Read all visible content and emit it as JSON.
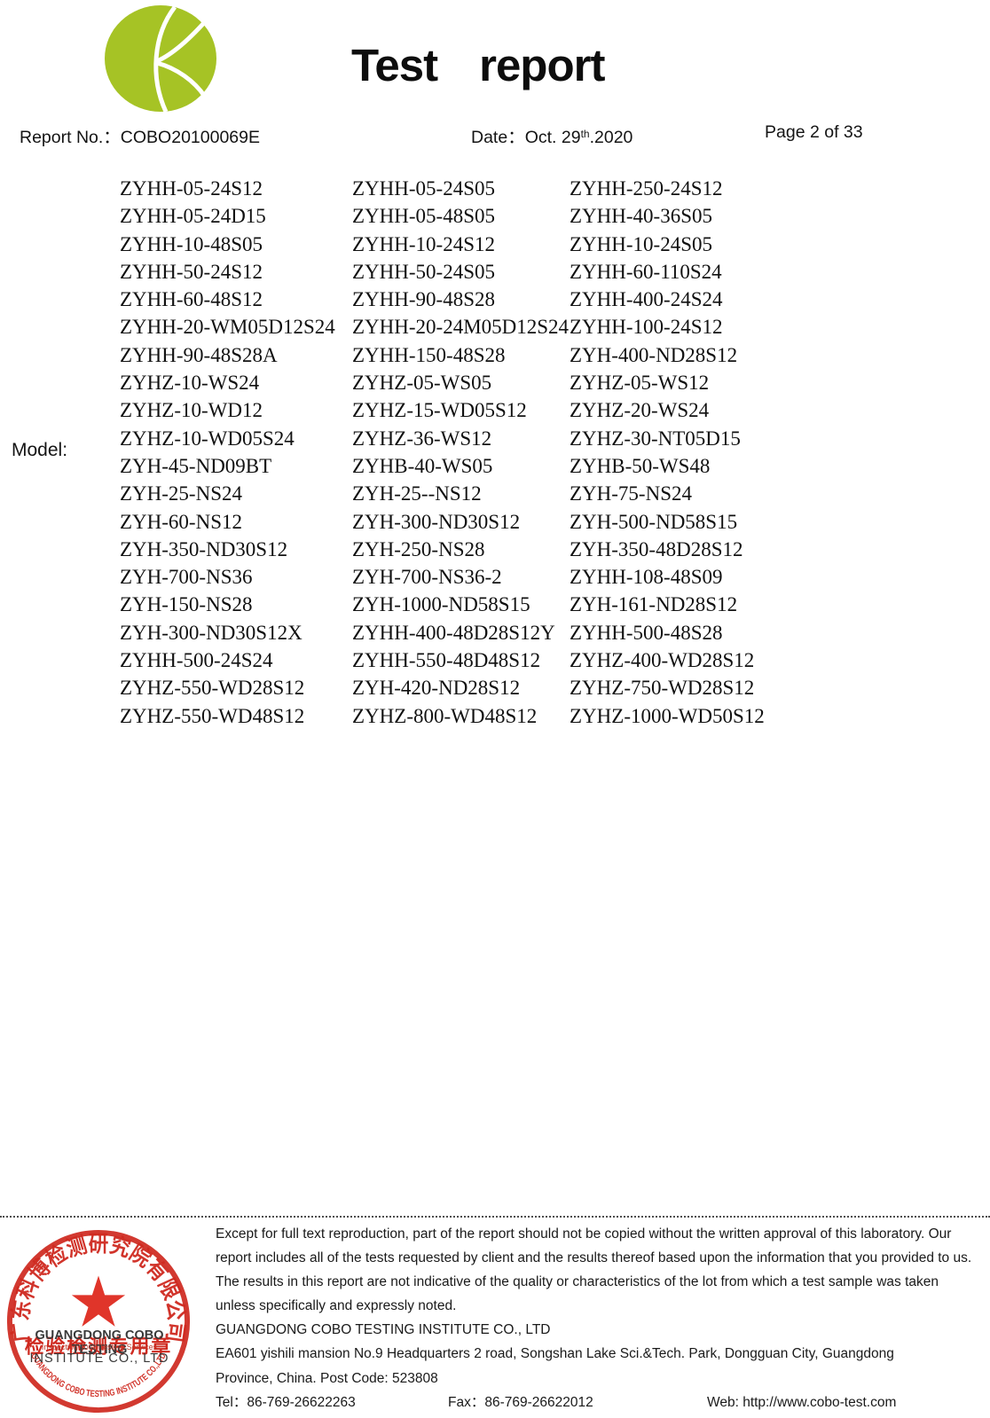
{
  "header": {
    "logo": "cobo-green-swirl-logo",
    "title_word1": "Test",
    "title_word2": "report",
    "report_no_label": "Report No.：",
    "report_no_value": "COBO20100069E",
    "date_label": "Date：",
    "date_day": "Oct. 29",
    "date_ordinal": "th",
    "date_year": ".2020",
    "page_label": "Page 2 of 33"
  },
  "model": {
    "label": "Model:",
    "rows": [
      [
        "ZYHH-05-24S12",
        "ZYHH-05-24S05",
        "ZYHH-250-24S12"
      ],
      [
        "ZYHH-05-24D15",
        "ZYHH-05-48S05",
        "ZYHH-40-36S05"
      ],
      [
        "ZYHH-10-48S05",
        "ZYHH-10-24S12",
        "ZYHH-10-24S05"
      ],
      [
        "ZYHH-50-24S12",
        "ZYHH-50-24S05",
        "ZYHH-60-110S24"
      ],
      [
        "ZYHH-60-48S12",
        "ZYHH-90-48S28",
        "ZYHH-400-24S24"
      ],
      [
        "ZYHH-20-WM05D12S24",
        "ZYHH-20-24M05D12S24",
        "ZYHH-100-24S12"
      ],
      [
        "ZYHH-90-48S28A",
        "ZYHH-150-48S28",
        "ZYH-400-ND28S12"
      ],
      [
        "ZYHZ-10-WS24",
        "ZYHZ-05-WS05",
        "ZYHZ-05-WS12"
      ],
      [
        "ZYHZ-10-WD12",
        "ZYHZ-15-WD05S12",
        "ZYHZ-20-WS24"
      ],
      [
        "ZYHZ-10-WD05S24",
        "ZYHZ-36-WS12",
        "ZYHZ-30-NT05D15"
      ],
      [
        "ZYH-45-ND09BT",
        "ZYHB-40-WS05",
        "ZYHB-50-WS48"
      ],
      [
        "ZYH-25-NS24",
        "ZYH-25--NS12",
        "ZYH-75-NS24"
      ],
      [
        "ZYH-60-NS12",
        "ZYH-300-ND30S12",
        "ZYH-500-ND58S15"
      ],
      [
        "ZYH-350-ND30S12",
        "ZYH-250-NS28",
        "ZYH-350-48D28S12"
      ],
      [
        "ZYH-700-NS36",
        "ZYH-700-NS36-2",
        "ZYHH-108-48S09"
      ],
      [
        "ZYH-150-NS28",
        "ZYH-1000-ND58S15",
        "ZYH-161-ND28S12"
      ],
      [
        "ZYH-300-ND30S12X",
        "ZYHH-400-48D28S12Y",
        "ZYHH-500-48S28"
      ],
      [
        "ZYHH-500-24S24",
        "ZYHH-550-48D48S12",
        "ZYHZ-400-WD28S12"
      ],
      [
        "ZYHZ-550-WD28S12",
        "ZYH-420-ND28S12",
        "ZYHZ-750-WD28S12"
      ],
      [
        "ZYHZ-550-WD48S12",
        "ZYHZ-800-WD48S12",
        "ZYHZ-1000-WD50S12"
      ]
    ]
  },
  "footer": {
    "disclaimer_lines": [
      "Except for full text reproduction, part of the report should not be copied without the written approval of this laboratory. Our",
      "report includes all of the tests requested by client and the results thereof based upon the information that you provided to us.",
      "The results in this report are not indicative of the quality or characteristics of the lot from which a test sample was taken",
      "unless specifically and expressly noted."
    ],
    "company_name": "GUANGDONG COBO TESTING INSTITUTE CO., LTD",
    "address_line1": "EA601 yishili mansion No.9 Headquarters 2 road, Songshan Lake Sci.&Tech. Park, Dongguan City, Guangdong",
    "address_line2": "Province, China. Post Code: 523808",
    "tel_label": "Tel：",
    "tel_value": "86-769-26622263",
    "fax_label": "Fax：",
    "fax_value": "86-769-26622012",
    "web_label": "Web: ",
    "web_value": "http://www.cobo-test.com"
  },
  "stamp": {
    "ring_text_cn": "广东科博检测研究院有限公司",
    "seal_text_cn": "检验检测专用章",
    "ring_text_en": "GUANGDONG COBO TESTING INSTITUTE CO.,LTD",
    "overlay_line1": "GUANGDONG COBO TESTING",
    "overlay_sub": "Inspection Total Testing Services",
    "overlay_line2": "INSTITUTE CO., LTD"
  },
  "colors": {
    "logo_green": "#a6c325",
    "stamp_red": "#cf2a20",
    "text": "#141414"
  }
}
